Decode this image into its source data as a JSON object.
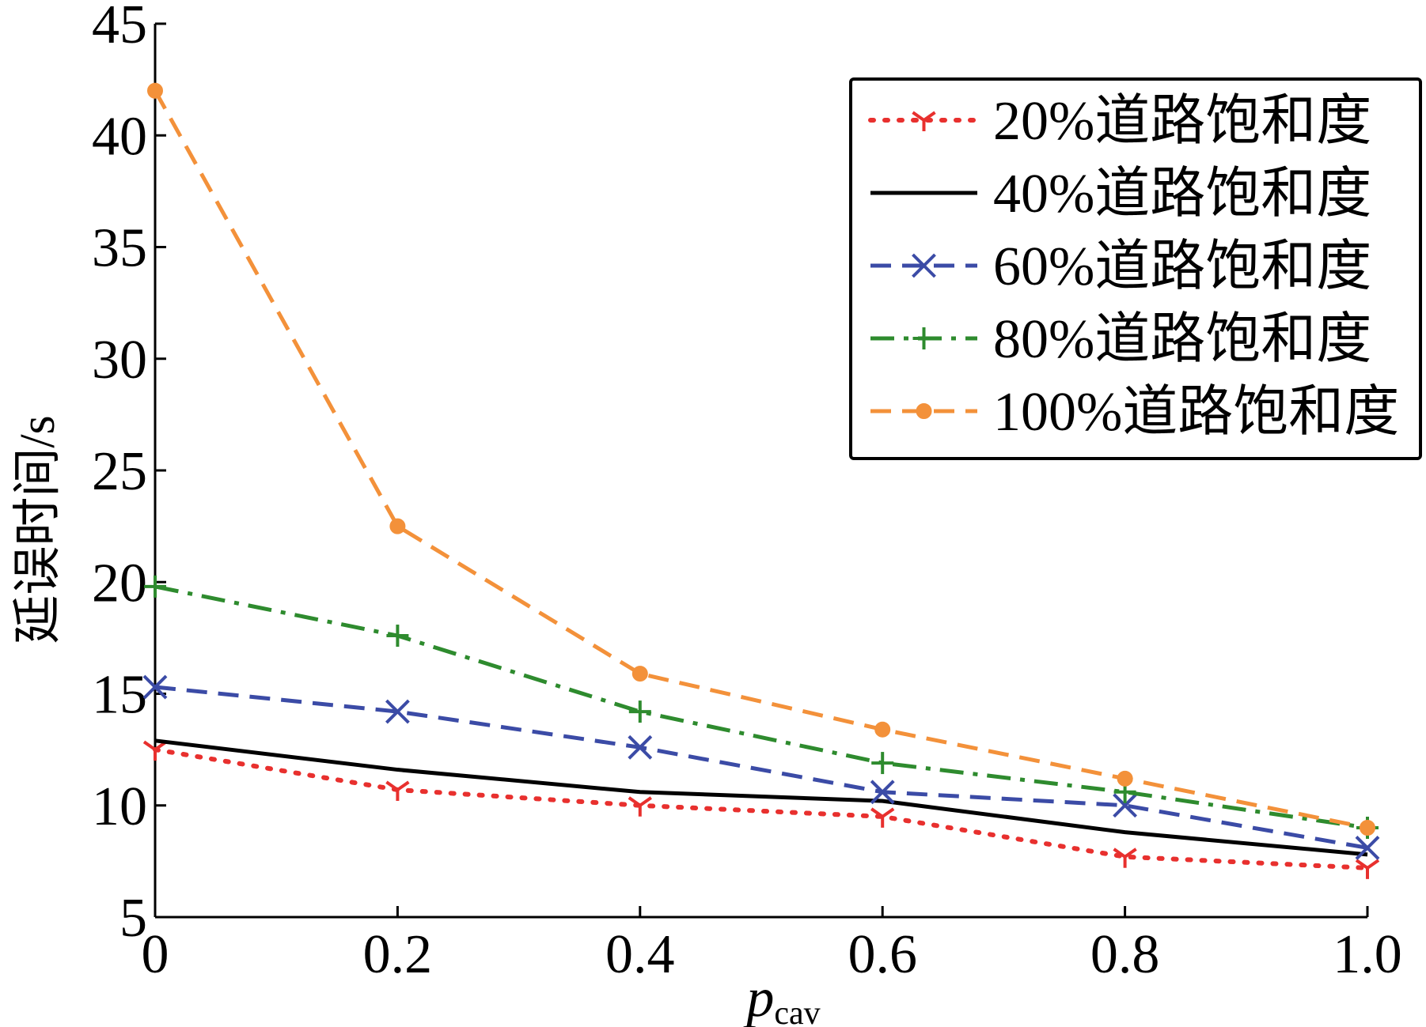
{
  "chart_data": {
    "type": "line",
    "title": "",
    "xlabel": "p",
    "xlabel_sub": "cav",
    "ylabel": "延误时间/s",
    "x": [
      0,
      0.2,
      0.4,
      0.6,
      0.8,
      1.0
    ],
    "xticks": [
      "0",
      "0.2",
      "0.4",
      "0.6",
      "0.8",
      "1.0"
    ],
    "yticks": [
      "5",
      "10",
      "15",
      "20",
      "25",
      "30",
      "35",
      "40",
      "45"
    ],
    "xlim": [
      0,
      1.0
    ],
    "ylim": [
      5,
      45
    ],
    "grid": false,
    "legend_position": "top-right",
    "series": [
      {
        "name": "20%道路饱和度",
        "values": [
          12.5,
          10.7,
          10.0,
          9.5,
          7.7,
          7.2
        ],
        "color": "#e8302e",
        "dash": "dotted",
        "marker": "tri-down"
      },
      {
        "name": "40%道路饱和度",
        "values": [
          12.9,
          11.6,
          10.6,
          10.2,
          8.8,
          7.8
        ],
        "color": "#000000",
        "dash": "solid",
        "marker": "none"
      },
      {
        "name": "60%道路饱和度",
        "values": [
          15.3,
          14.2,
          12.6,
          10.6,
          10.0,
          8.1
        ],
        "color": "#3b4ba6",
        "dash": "dashed",
        "marker": "x"
      },
      {
        "name": "80%道路饱和度",
        "values": [
          19.8,
          17.6,
          14.2,
          11.9,
          10.6,
          9.0
        ],
        "color": "#2e8b2e",
        "dash": "dashdot",
        "marker": "plus"
      },
      {
        "name": "100%道路饱和度",
        "values": [
          42.0,
          22.5,
          15.9,
          13.4,
          11.2,
          9.0
        ],
        "color": "#f3913a",
        "dash": "dashed",
        "marker": "circle"
      }
    ]
  }
}
